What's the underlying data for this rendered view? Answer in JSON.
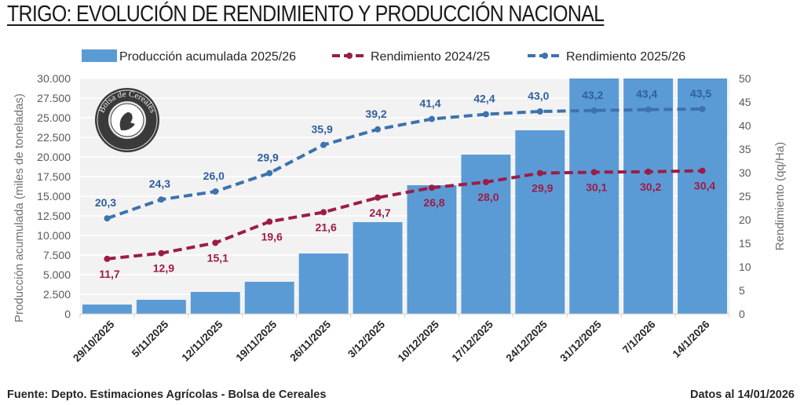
{
  "header": {
    "title": "TRIGO: EVOLUCIÓN DE RENDIMIENTO Y PRODUCCIÓN NACIONAL"
  },
  "footer": {
    "source": "Fuente: Depto. Estimaciones Agrícolas - Bolsa de Cereales",
    "date": "Datos al 14/01/2026"
  },
  "logo": {
    "name": "Bolsa de Cereales",
    "icon": "bolsa-de-cereales-seal-icon"
  },
  "colors": {
    "bars": "#5b9bd5",
    "yield_2024_25": "#9c1c48",
    "yield_2025_26": "#3d72ad",
    "plot_bg": "#f2f2f2",
    "grid": "#ffffff"
  },
  "chart_data": {
    "type": "bar+line",
    "title": "TRIGO: EVOLUCIÓN DE RENDIMIENTO Y PRODUCCIÓN NACIONAL",
    "categories": [
      "29/10/2025",
      "5/11/2025",
      "12/11/2025",
      "19/11/2025",
      "26/11/2025",
      "3/12/2025",
      "10/12/2025",
      "17/12/2025",
      "24/12/2025",
      "31/12/2025",
      "7/1/2026",
      "14/1/2026"
    ],
    "ylabel_left": "Producción acumulada (miles de toneladas)",
    "ylabel_right": "Rendimiento (qq/Ha)",
    "ylim_left": [
      0,
      30000
    ],
    "ylim_right": [
      0,
      50
    ],
    "yticks_left": [
      "0",
      "2.500",
      "5.000",
      "7.500",
      "10.000",
      "12.500",
      "15.000",
      "17.500",
      "20.000",
      "22.500",
      "25.000",
      "27.500",
      "30.000"
    ],
    "yticks_right": [
      "0",
      "5",
      "10",
      "15",
      "20",
      "25",
      "30",
      "35",
      "40",
      "45",
      "50"
    ],
    "grid": true,
    "legend_position": "top",
    "series": [
      {
        "name": "Producción acumulada 2025/26",
        "type": "bar",
        "axis": "left",
        "values": [
          1200,
          1800,
          2800,
          4100,
          7700,
          11700,
          16400,
          20300,
          23400,
          30000,
          30000,
          30000
        ],
        "note": "last three bars exceed the 30.000 axis maximum and are clipped"
      },
      {
        "name": "Rendimiento 2024/25",
        "type": "line",
        "style": "dashed",
        "axis": "right",
        "values": [
          11.7,
          12.9,
          15.1,
          19.6,
          21.6,
          24.7,
          26.8,
          28.0,
          29.9,
          30.1,
          30.2,
          30.4
        ],
        "labels": [
          "11,7",
          "12,9",
          "15,1",
          "19,6",
          "21,6",
          "24,7",
          "26,8",
          "28,0",
          "29,9",
          "30,1",
          "30,2",
          "30,4"
        ]
      },
      {
        "name": "Rendimiento 2025/26",
        "type": "line",
        "style": "dashed",
        "axis": "right",
        "values": [
          20.3,
          24.3,
          26.0,
          29.9,
          35.9,
          39.2,
          41.4,
          42.4,
          43.0,
          43.2,
          43.4,
          43.5
        ],
        "labels": [
          "20,3",
          "24,3",
          "26,0",
          "29,9",
          "35,9",
          "39,2",
          "41,4",
          "42,4",
          "43,0",
          "43,2",
          "43,4",
          "43,5"
        ]
      }
    ]
  }
}
